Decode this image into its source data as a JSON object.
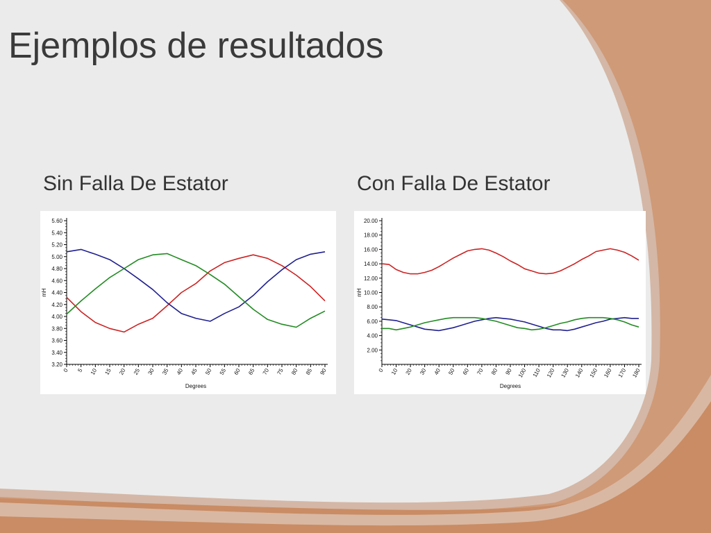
{
  "slide": {
    "title": "Ejemplos de resultados",
    "subtitle_left": "Sin Falla De Estator",
    "subtitle_right": "Con Falla De Estator"
  },
  "colors": {
    "background_main": "#ebebeb",
    "accent_orange": "#c5865a",
    "accent_orange_light": "#d9a57f",
    "accent_pale": "#d4b7a6",
    "series_red": "#cc2222",
    "series_blue": "#1f1f8f",
    "series_green": "#228b22"
  },
  "chart_data": [
    {
      "type": "line",
      "xlabel": "Degrees",
      "ylabel": "mH",
      "xlim": [
        0,
        90
      ],
      "ylim": [
        3.2,
        5.6
      ],
      "x_ticks": [
        0,
        5,
        10,
        15,
        20,
        25,
        30,
        35,
        40,
        45,
        50,
        55,
        60,
        65,
        70,
        75,
        80,
        85,
        90
      ],
      "y_ticks": [
        "3.20",
        "3.40",
        "3.60",
        "3.80",
        "4.00",
        "4.20",
        "4.40",
        "4.60",
        "4.80",
        "5.00",
        "5.20",
        "5.40",
        "5.60"
      ],
      "x": [
        0,
        5,
        10,
        15,
        20,
        25,
        30,
        35,
        40,
        45,
        50,
        55,
        60,
        65,
        70,
        75,
        80,
        85,
        90
      ],
      "series": [
        {
          "color": "#cc2222",
          "values": [
            4.32,
            4.08,
            3.9,
            3.8,
            3.74,
            3.87,
            3.97,
            4.18,
            4.4,
            4.55,
            4.76,
            4.9,
            4.97,
            5.03,
            4.97,
            4.85,
            4.69,
            4.5,
            4.26
          ]
        },
        {
          "color": "#1f1f8f",
          "values": [
            5.08,
            5.12,
            5.04,
            4.95,
            4.8,
            4.63,
            4.45,
            4.23,
            4.05,
            3.97,
            3.92,
            4.05,
            4.16,
            4.35,
            4.58,
            4.78,
            4.95,
            5.04,
            5.08
          ]
        },
        {
          "color": "#228b22",
          "values": [
            4.04,
            4.26,
            4.46,
            4.65,
            4.8,
            4.95,
            5.03,
            5.05,
            4.95,
            4.85,
            4.7,
            4.54,
            4.33,
            4.12,
            3.95,
            3.87,
            3.82,
            3.97,
            4.09
          ]
        }
      ]
    },
    {
      "type": "line",
      "xlabel": "Degrees",
      "ylabel": "mH",
      "xlim": [
        0,
        180
      ],
      "ylim": [
        0,
        20
      ],
      "x_ticks": [
        0,
        10,
        20,
        30,
        40,
        50,
        60,
        70,
        80,
        90,
        100,
        110,
        120,
        130,
        140,
        150,
        160,
        170,
        180
      ],
      "y_ticks": [
        "2.00",
        "4.00",
        "6.00",
        "8.00",
        "10.00",
        "12.00",
        "14.00",
        "16.00",
        "18.00",
        "20.00"
      ],
      "x": [
        0,
        5,
        10,
        15,
        20,
        25,
        30,
        35,
        40,
        45,
        50,
        55,
        60,
        65,
        70,
        75,
        80,
        85,
        90,
        95,
        100,
        105,
        110,
        115,
        120,
        125,
        130,
        135,
        140,
        145,
        150,
        155,
        160,
        165,
        170,
        175,
        180
      ],
      "series": [
        {
          "color": "#cc2222",
          "values": [
            14.0,
            13.9,
            13.2,
            12.8,
            12.6,
            12.6,
            12.8,
            13.1,
            13.6,
            14.2,
            14.8,
            15.3,
            15.8,
            16.0,
            16.1,
            15.9,
            15.5,
            15.0,
            14.4,
            13.9,
            13.3,
            13.0,
            12.7,
            12.6,
            12.7,
            13.0,
            13.5,
            14.0,
            14.6,
            15.1,
            15.7,
            15.9,
            16.1,
            15.9,
            15.6,
            15.1,
            14.5
          ]
        },
        {
          "color": "#1f1f8f",
          "values": [
            6.3,
            6.2,
            6.1,
            5.8,
            5.5,
            5.2,
            4.9,
            4.8,
            4.7,
            4.9,
            5.1,
            5.4,
            5.7,
            6.0,
            6.2,
            6.4,
            6.5,
            6.4,
            6.3,
            6.1,
            5.9,
            5.6,
            5.3,
            5.0,
            4.8,
            4.8,
            4.7,
            4.9,
            5.2,
            5.5,
            5.8,
            6.0,
            6.3,
            6.4,
            6.5,
            6.4,
            6.4
          ]
        },
        {
          "color": "#228b22",
          "values": [
            5.0,
            5.0,
            4.8,
            5.0,
            5.2,
            5.5,
            5.8,
            6.0,
            6.2,
            6.4,
            6.5,
            6.5,
            6.5,
            6.5,
            6.4,
            6.2,
            6.0,
            5.7,
            5.4,
            5.1,
            5.0,
            4.8,
            4.9,
            5.1,
            5.4,
            5.7,
            5.9,
            6.2,
            6.4,
            6.5,
            6.5,
            6.5,
            6.4,
            6.2,
            5.9,
            5.5,
            5.2
          ]
        }
      ]
    }
  ]
}
